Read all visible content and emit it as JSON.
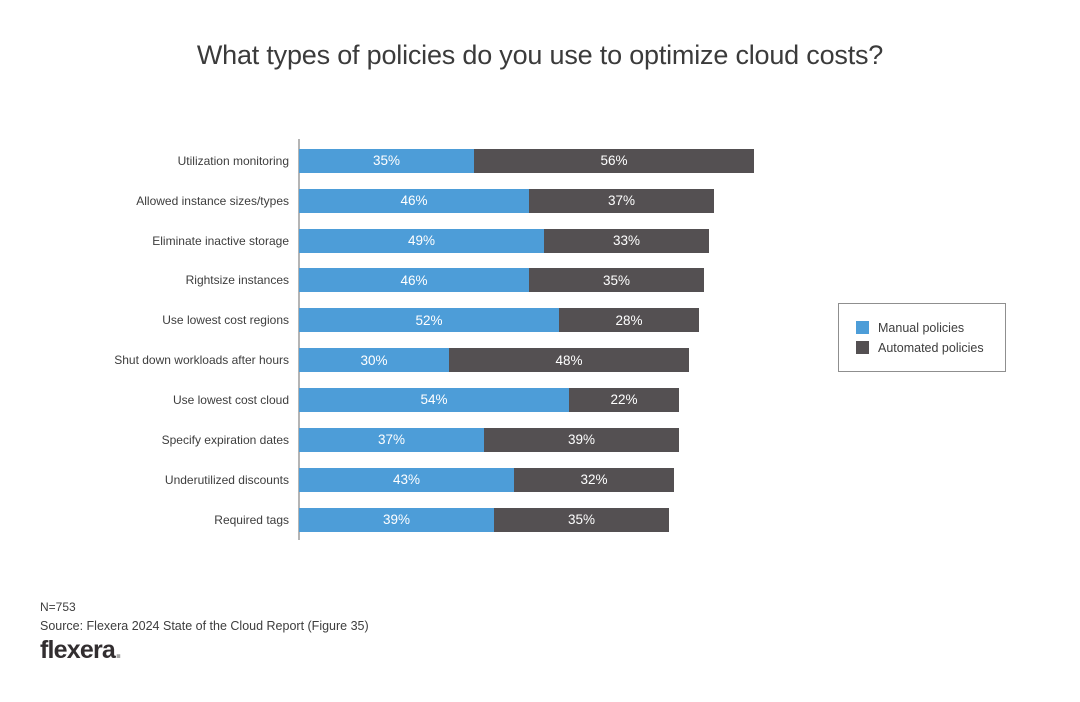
{
  "title": "What types of policies do you use to optimize cloud costs?",
  "chart_data": {
    "type": "bar",
    "orientation": "horizontal",
    "stacked": true,
    "title": "What types of policies do you use to optimize cloud costs?",
    "categories": [
      "Utilization monitoring",
      "Allowed instance sizes/types",
      "Eliminate inactive storage",
      "Rightsize instances",
      "Use lowest cost regions",
      "Shut down workloads after hours",
      "Use lowest cost cloud",
      "Specify expiration dates",
      "Underutilized discounts",
      "Required tags"
    ],
    "series": [
      {
        "name": "Manual policies",
        "color": "#4d9dd8",
        "values": [
          35,
          46,
          49,
          46,
          52,
          30,
          54,
          37,
          43,
          39
        ]
      },
      {
        "name": "Automated policies",
        "color": "#545052",
        "values": [
          56,
          37,
          33,
          35,
          28,
          48,
          22,
          39,
          32,
          35
        ]
      }
    ],
    "value_format": "percent",
    "data_labels_shown": true,
    "xlim": [
      0,
      100
    ],
    "gridlines": false,
    "legend_position": "right"
  },
  "legend": {
    "items": [
      {
        "label": "Manual policies",
        "color": "#4d9dd8"
      },
      {
        "label": "Automated policies",
        "color": "#545052"
      }
    ]
  },
  "footer": {
    "sample_size": "N=753",
    "source": "Source: Flexera 2024 State of the Cloud Report (Figure 35)",
    "logo_text": "flexera",
    "logo_dot": "."
  }
}
